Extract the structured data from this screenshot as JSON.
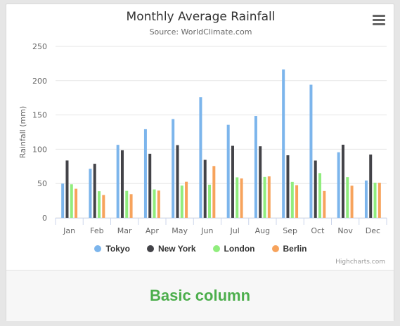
{
  "chart_data": {
    "type": "bar",
    "title": "Monthly Average Rainfall",
    "subtitle": "Source: WorldClimate.com",
    "ylabel": "Rainfall (mm)",
    "xlabel": "",
    "ylim": [
      0,
      250
    ],
    "yticks": [
      0,
      50,
      100,
      150,
      200,
      250
    ],
    "grid": true,
    "legend_position": "bottom-center",
    "categories": [
      "Jan",
      "Feb",
      "Mar",
      "Apr",
      "May",
      "Jun",
      "Jul",
      "Aug",
      "Sep",
      "Oct",
      "Nov",
      "Dec"
    ],
    "series": [
      {
        "name": "Tokyo",
        "color": "#7cb5ec",
        "values": [
          49.9,
          71.5,
          106.4,
          129.2,
          144.0,
          176.0,
          135.6,
          148.5,
          216.4,
          194.1,
          95.6,
          54.4
        ]
      },
      {
        "name": "New York",
        "color": "#434348",
        "values": [
          83.6,
          78.8,
          98.5,
          93.4,
          106.0,
          84.5,
          105.0,
          104.3,
          91.2,
          83.5,
          106.6,
          92.3
        ]
      },
      {
        "name": "London",
        "color": "#90ed7d",
        "values": [
          48.9,
          38.8,
          39.3,
          41.4,
          47.0,
          48.3,
          59.0,
          59.6,
          52.4,
          65.2,
          59.3,
          51.2
        ]
      },
      {
        "name": "Berlin",
        "color": "#f7a35c",
        "values": [
          42.4,
          33.2,
          34.5,
          39.7,
          52.6,
          75.5,
          57.4,
          60.4,
          47.6,
          39.1,
          46.8,
          51.1
        ]
      }
    ]
  },
  "credits": "Highcharts.com",
  "footer_label": "Basic column",
  "menu_icon": "hamburger-menu-icon"
}
